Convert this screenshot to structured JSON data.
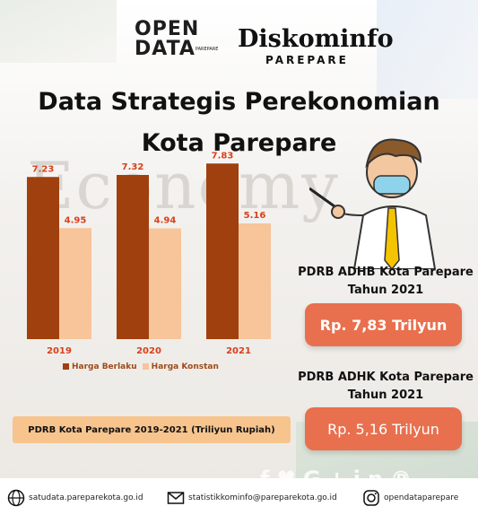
{
  "header": {
    "opendata_top": "OPEN",
    "opendata_bottom": "DATA",
    "opendata_sub": "PAREPARE",
    "diskominfo": "Diskominfo",
    "diskominfo_sub": "PAREPARE"
  },
  "title": {
    "line1": "Data Strategis Perekonomian",
    "line2": "Kota Parepare"
  },
  "background_word": "Economy",
  "chart_data": {
    "type": "bar",
    "categories": [
      "2019",
      "2020",
      "2021"
    ],
    "series": [
      {
        "name": "Harga Berlaku",
        "values": [
          7.23,
          7.32,
          7.83
        ],
        "color": "#a0400e"
      },
      {
        "name": "Harga Konstan",
        "values": [
          4.95,
          4.94,
          5.16
        ],
        "color": "#f8c49a"
      }
    ],
    "ylim": [
      0,
      8
    ],
    "grid": false,
    "legend_position": "bottom-left",
    "caption": "PDRB Kota Parepare 2019-2021 (Triliyun Rupiah)",
    "label_color": "#d8401a"
  },
  "kpi": {
    "adhb_line1": "PDRB ADHB Kota Parepare",
    "adhb_line2": "Tahun 2021",
    "adhb_value": "Rp. 7,83 Trilyun",
    "adhk_line1": "PDRB ADHK Kota Parepare",
    "adhk_line2": "Tahun 2021",
    "adhk_value": "Rp. 5,16 Trilyun",
    "box_color": "#e8704e"
  },
  "social_icons": [
    "facebook-icon",
    "twitter-icon",
    "google-plus-icon",
    "linkedin-icon",
    "pinterest-icon"
  ],
  "footer": {
    "website": "satudata.pareparekota.go.id",
    "email": "statistikkominfo@pareparekota.go.id",
    "instagram": "opendataparepare"
  }
}
